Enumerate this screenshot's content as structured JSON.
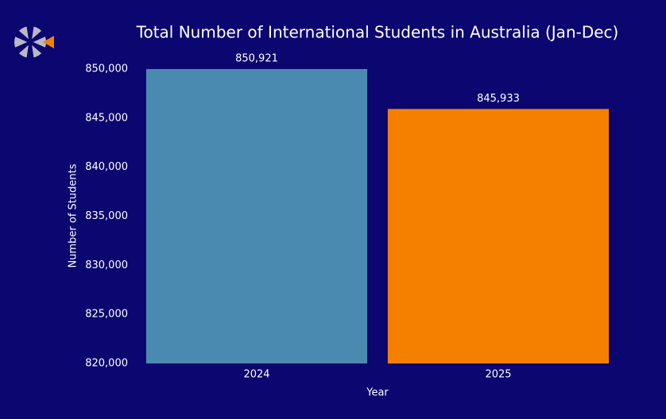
{
  "chart_data": {
    "type": "bar",
    "title": "Total Number of International Students in Australia (Jan-Dec)",
    "x_label": "Year",
    "y_label": "Number of Students",
    "categories": [
      "2024",
      "2025"
    ],
    "values": [
      850921,
      845933
    ],
    "value_labels": [
      "850,921",
      "845,933"
    ],
    "colors": [
      "#4b8ab0",
      "#f58000"
    ],
    "ylim": [
      820000,
      850000
    ],
    "yticks": [
      {
        "value": 820000,
        "label": "820,000"
      },
      {
        "value": 825000,
        "label": "825,000"
      },
      {
        "value": 830000,
        "label": "830,000"
      },
      {
        "value": 835000,
        "label": "835,000"
      },
      {
        "value": 840000,
        "label": "840,000"
      },
      {
        "value": 845000,
        "label": "845,000"
      },
      {
        "value": 850000,
        "label": "850,000"
      }
    ],
    "grid": false
  }
}
